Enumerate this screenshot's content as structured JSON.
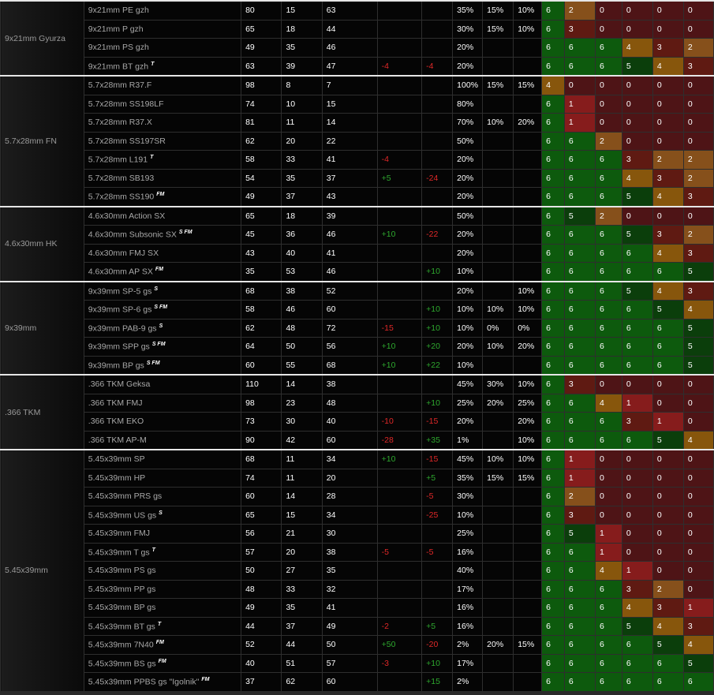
{
  "groups": [
    {
      "name": "9x21mm Gyurza",
      "rows": [
        {
          "name": "9x21mm PE gzh",
          "tag": "",
          "c1": "80",
          "c2": "15",
          "c3": "63",
          "c4": "",
          "c5": "",
          "c6": "35%",
          "c7": "15%",
          "c8": "10%",
          "e": [
            "6",
            "2",
            "0",
            "0",
            "0",
            "0"
          ]
        },
        {
          "name": "9x21mm P gzh",
          "tag": "",
          "c1": "65",
          "c2": "18",
          "c3": "44",
          "c4": "",
          "c5": "",
          "c6": "30%",
          "c7": "15%",
          "c8": "10%",
          "e": [
            "6",
            "3",
            "0",
            "0",
            "0",
            "0"
          ]
        },
        {
          "name": "9x21mm PS gzh",
          "tag": "",
          "c1": "49",
          "c2": "35",
          "c3": "46",
          "c4": "",
          "c5": "",
          "c6": "20%",
          "c7": "",
          "c8": "",
          "e": [
            "6",
            "6",
            "6",
            "4",
            "3",
            "2"
          ]
        },
        {
          "name": "9x21mm BT gzh",
          "tag": "T",
          "c1": "63",
          "c2": "39",
          "c3": "47",
          "c4": "-4",
          "c5": "-4",
          "c6": "20%",
          "c7": "",
          "c8": "",
          "e": [
            "6",
            "6",
            "6",
            "5",
            "4",
            "3"
          ]
        }
      ]
    },
    {
      "name": "5.7x28mm FN",
      "rows": [
        {
          "name": "5.7x28mm R37.F",
          "tag": "",
          "c1": "98",
          "c2": "8",
          "c3": "7",
          "c4": "",
          "c5": "",
          "c6": "100%",
          "c7": "15%",
          "c8": "15%",
          "e": [
            "4",
            "0",
            "0",
            "0",
            "0",
            "0"
          ]
        },
        {
          "name": "5.7x28mm SS198LF",
          "tag": "",
          "c1": "74",
          "c2": "10",
          "c3": "15",
          "c4": "",
          "c5": "",
          "c6": "80%",
          "c7": "",
          "c8": "",
          "e": [
            "6",
            "1",
            "0",
            "0",
            "0",
            "0"
          ]
        },
        {
          "name": "5.7x28mm R37.X",
          "tag": "",
          "c1": "81",
          "c2": "11",
          "c3": "14",
          "c4": "",
          "c5": "",
          "c6": "70%",
          "c7": "10%",
          "c8": "20%",
          "e": [
            "6",
            "1",
            "0",
            "0",
            "0",
            "0"
          ]
        },
        {
          "name": "5.7x28mm SS197SR",
          "tag": "",
          "c1": "62",
          "c2": "20",
          "c3": "22",
          "c4": "",
          "c5": "",
          "c6": "50%",
          "c7": "",
          "c8": "",
          "e": [
            "6",
            "6",
            "2",
            "0",
            "0",
            "0"
          ]
        },
        {
          "name": "5.7x28mm L191",
          "tag": "T",
          "c1": "58",
          "c2": "33",
          "c3": "41",
          "c4": "-4",
          "c5": "",
          "c6": "20%",
          "c7": "",
          "c8": "",
          "e": [
            "6",
            "6",
            "6",
            "3",
            "2",
            "2"
          ]
        },
        {
          "name": "5.7x28mm SB193",
          "tag": "",
          "c1": "54",
          "c2": "35",
          "c3": "37",
          "c4": "+5",
          "c5": "-24",
          "c6": "20%",
          "c7": "",
          "c8": "",
          "e": [
            "6",
            "6",
            "6",
            "4",
            "3",
            "2"
          ]
        },
        {
          "name": "5.7x28mm SS190",
          "tag": "FM",
          "c1": "49",
          "c2": "37",
          "c3": "43",
          "c4": "",
          "c5": "",
          "c6": "20%",
          "c7": "",
          "c8": "",
          "e": [
            "6",
            "6",
            "6",
            "5",
            "4",
            "3"
          ]
        }
      ]
    },
    {
      "name": "4.6x30mm HK",
      "rows": [
        {
          "name": "4.6x30mm Action SX",
          "tag": "",
          "c1": "65",
          "c2": "18",
          "c3": "39",
          "c4": "",
          "c5": "",
          "c6": "50%",
          "c7": "",
          "c8": "",
          "e": [
            "6",
            "5",
            "2",
            "0",
            "0",
            "0"
          ]
        },
        {
          "name": "4.6x30mm Subsonic SX",
          "tag": "S FM",
          "c1": "45",
          "c2": "36",
          "c3": "46",
          "c4": "+10",
          "c5": "-22",
          "c6": "20%",
          "c7": "",
          "c8": "",
          "e": [
            "6",
            "6",
            "6",
            "5",
            "3",
            "2"
          ]
        },
        {
          "name": "4.6x30mm FMJ SX",
          "tag": "",
          "c1": "43",
          "c2": "40",
          "c3": "41",
          "c4": "",
          "c5": "",
          "c6": "20%",
          "c7": "",
          "c8": "",
          "e": [
            "6",
            "6",
            "6",
            "6",
            "4",
            "3"
          ]
        },
        {
          "name": "4.6x30mm AP SX",
          "tag": "FM",
          "c1": "35",
          "c2": "53",
          "c3": "46",
          "c4": "",
          "c5": "+10",
          "c6": "10%",
          "c7": "",
          "c8": "",
          "e": [
            "6",
            "6",
            "6",
            "6",
            "6",
            "5"
          ]
        }
      ]
    },
    {
      "name": "9x39mm",
      "rows": [
        {
          "name": "9x39mm SP-5 gs",
          "tag": "S",
          "c1": "68",
          "c2": "38",
          "c3": "52",
          "c4": "",
          "c5": "",
          "c6": "20%",
          "c7": "",
          "c8": "10%",
          "e": [
            "6",
            "6",
            "6",
            "5",
            "4",
            "3"
          ]
        },
        {
          "name": "9x39mm SP-6 gs",
          "tag": "S FM",
          "c1": "58",
          "c2": "46",
          "c3": "60",
          "c4": "",
          "c5": "+10",
          "c6": "10%",
          "c7": "10%",
          "c8": "10%",
          "e": [
            "6",
            "6",
            "6",
            "6",
            "5",
            "4"
          ]
        },
        {
          "name": "9x39mm PAB-9 gs",
          "tag": "S",
          "c1": "62",
          "c2": "48",
          "c3": "72",
          "c4": "-15",
          "c5": "+10",
          "c6": "10%",
          "c7": "0%",
          "c8": "0%",
          "e": [
            "6",
            "6",
            "6",
            "6",
            "6",
            "5"
          ]
        },
        {
          "name": "9x39mm SPP gs",
          "tag": "S FM",
          "c1": "64",
          "c2": "50",
          "c3": "56",
          "c4": "+10",
          "c5": "+20",
          "c6": "20%",
          "c7": "10%",
          "c8": "20%",
          "e": [
            "6",
            "6",
            "6",
            "6",
            "6",
            "5"
          ]
        },
        {
          "name": "9x39mm BP gs",
          "tag": "S FM",
          "c1": "60",
          "c2": "55",
          "c3": "68",
          "c4": "+10",
          "c5": "+22",
          "c6": "10%",
          "c7": "",
          "c8": "",
          "e": [
            "6",
            "6",
            "6",
            "6",
            "6",
            "5"
          ]
        }
      ]
    },
    {
      "name": ".366 TKM",
      "rows": [
        {
          "name": ".366 TKM Geksa",
          "tag": "",
          "c1": "110",
          "c2": "14",
          "c3": "38",
          "c4": "",
          "c5": "",
          "c6": "45%",
          "c7": "30%",
          "c8": "10%",
          "e": [
            "6",
            "3",
            "0",
            "0",
            "0",
            "0"
          ]
        },
        {
          "name": ".366 TKM FMJ",
          "tag": "",
          "c1": "98",
          "c2": "23",
          "c3": "48",
          "c4": "",
          "c5": "+10",
          "c6": "25%",
          "c7": "20%",
          "c8": "25%",
          "e": [
            "6",
            "6",
            "4",
            "1",
            "0",
            "0"
          ]
        },
        {
          "name": ".366 TKM EKO",
          "tag": "",
          "c1": "73",
          "c2": "30",
          "c3": "40",
          "c4": "-10",
          "c5": "-15",
          "c6": "20%",
          "c7": "",
          "c8": "20%",
          "e": [
            "6",
            "6",
            "6",
            "3",
            "1",
            "0"
          ]
        },
        {
          "name": ".366 TKM AP-M",
          "tag": "",
          "c1": "90",
          "c2": "42",
          "c3": "60",
          "c4": "-28",
          "c5": "+35",
          "c6": "1%",
          "c7": "",
          "c8": "10%",
          "e": [
            "6",
            "6",
            "6",
            "6",
            "5",
            "4"
          ]
        }
      ]
    },
    {
      "name": "5.45x39mm",
      "rows": [
        {
          "name": "5.45x39mm SP",
          "tag": "",
          "c1": "68",
          "c2": "11",
          "c3": "34",
          "c4": "+10",
          "c5": "-15",
          "c6": "45%",
          "c7": "10%",
          "c8": "10%",
          "e": [
            "6",
            "1",
            "0",
            "0",
            "0",
            "0"
          ]
        },
        {
          "name": "5.45x39mm HP",
          "tag": "",
          "c1": "74",
          "c2": "11",
          "c3": "20",
          "c4": "",
          "c5": "+5",
          "c6": "35%",
          "c7": "15%",
          "c8": "15%",
          "e": [
            "6",
            "1",
            "0",
            "0",
            "0",
            "0"
          ]
        },
        {
          "name": "5.45x39mm PRS gs",
          "tag": "",
          "c1": "60",
          "c2": "14",
          "c3": "28",
          "c4": "",
          "c5": "-5",
          "c6": "30%",
          "c7": "",
          "c8": "",
          "e": [
            "6",
            "2",
            "0",
            "0",
            "0",
            "0"
          ]
        },
        {
          "name": "5.45x39mm US gs",
          "tag": "S",
          "c1": "65",
          "c2": "15",
          "c3": "34",
          "c4": "",
          "c5": "-25",
          "c6": "10%",
          "c7": "",
          "c8": "",
          "e": [
            "6",
            "3",
            "0",
            "0",
            "0",
            "0"
          ]
        },
        {
          "name": "5.45x39mm FMJ",
          "tag": "",
          "c1": "56",
          "c2": "21",
          "c3": "30",
          "c4": "",
          "c5": "",
          "c6": "25%",
          "c7": "",
          "c8": "",
          "e": [
            "6",
            "5",
            "1",
            "0",
            "0",
            "0"
          ]
        },
        {
          "name": "5.45x39mm T gs",
          "tag": "T",
          "c1": "57",
          "c2": "20",
          "c3": "38",
          "c4": "-5",
          "c5": "-5",
          "c6": "16%",
          "c7": "",
          "c8": "",
          "e": [
            "6",
            "6",
            "1",
            "0",
            "0",
            "0"
          ]
        },
        {
          "name": "5.45x39mm PS gs",
          "tag": "",
          "c1": "50",
          "c2": "27",
          "c3": "35",
          "c4": "",
          "c5": "",
          "c6": "40%",
          "c7": "",
          "c8": "",
          "e": [
            "6",
            "6",
            "4",
            "1",
            "0",
            "0"
          ]
        },
        {
          "name": "5.45x39mm PP gs",
          "tag": "",
          "c1": "48",
          "c2": "33",
          "c3": "32",
          "c4": "",
          "c5": "",
          "c6": "17%",
          "c7": "",
          "c8": "",
          "e": [
            "6",
            "6",
            "6",
            "3",
            "2",
            "0"
          ]
        },
        {
          "name": "5.45x39mm BP gs",
          "tag": "",
          "c1": "49",
          "c2": "35",
          "c3": "41",
          "c4": "",
          "c5": "",
          "c6": "16%",
          "c7": "",
          "c8": "",
          "e": [
            "6",
            "6",
            "6",
            "4",
            "3",
            "1"
          ]
        },
        {
          "name": "5.45x39mm BT gs",
          "tag": "T",
          "c1": "44",
          "c2": "37",
          "c3": "49",
          "c4": "-2",
          "c5": "+5",
          "c6": "16%",
          "c7": "",
          "c8": "",
          "e": [
            "6",
            "6",
            "6",
            "5",
            "4",
            "3"
          ]
        },
        {
          "name": "5.45x39mm 7N40",
          "tag": "FM",
          "c1": "52",
          "c2": "44",
          "c3": "50",
          "c4": "+50",
          "c5": "-20",
          "c6": "2%",
          "c7": "20%",
          "c8": "15%",
          "e": [
            "6",
            "6",
            "6",
            "6",
            "5",
            "4"
          ]
        },
        {
          "name": "5.45x39mm BS gs",
          "tag": "FM",
          "c1": "40",
          "c2": "51",
          "c3": "57",
          "c4": "-3",
          "c5": "+10",
          "c6": "17%",
          "c7": "",
          "c8": "",
          "e": [
            "6",
            "6",
            "6",
            "6",
            "6",
            "5"
          ]
        },
        {
          "name": "5.45x39mm PPBS gs \"Igolnik\"",
          "tag": "FM",
          "c1": "37",
          "c2": "62",
          "c3": "60",
          "c4": "",
          "c5": "+15",
          "c6": "2%",
          "c7": "",
          "c8": "",
          "e": [
            "6",
            "6",
            "6",
            "6",
            "6",
            "6"
          ]
        }
      ]
    }
  ],
  "colors": {
    "eff6": "#0d5a0d",
    "eff5": "#0b3e0b",
    "eff4": "#87560c",
    "eff3": "#5f1a12",
    "eff2": "#86501b",
    "eff1": "#861c1c",
    "eff0": "#4e1416",
    "negative": "#e02828",
    "positive": "#2ea82e"
  }
}
